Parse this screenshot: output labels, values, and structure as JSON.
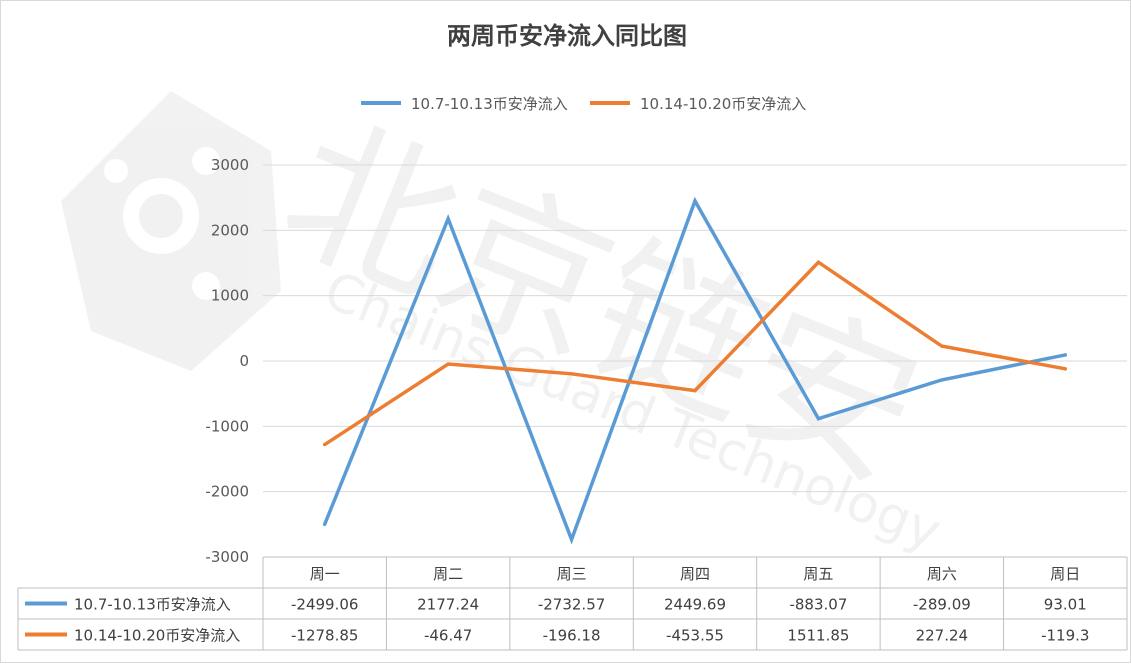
{
  "watermark": {
    "main_text": "北京链安",
    "sub_text": "Chains Guard Technology",
    "color": "#000000"
  },
  "chart_data": {
    "type": "line",
    "title": "两周币安净流入同比图",
    "categories": [
      "周一",
      "周二",
      "周三",
      "周四",
      "周五",
      "周六",
      "周日"
    ],
    "ylim": [
      -3000,
      3000
    ],
    "y_ticks": [
      3000,
      2000,
      1000,
      0,
      -1000,
      -2000,
      -3000
    ],
    "grid": true,
    "legend_position": "top",
    "data_table": true,
    "series": [
      {
        "name": "10.7-10.13币安净流入",
        "color": "#5B9BD5",
        "values": [
          -2499.06,
          2177.24,
          -2732.57,
          2449.69,
          -883.07,
          -289.09,
          93.01
        ]
      },
      {
        "name": "10.14-10.20币安净流入",
        "color": "#ED7D31",
        "values": [
          -1278.85,
          -46.47,
          -196.18,
          -453.55,
          1511.85,
          227.24,
          -119.3
        ]
      }
    ]
  }
}
